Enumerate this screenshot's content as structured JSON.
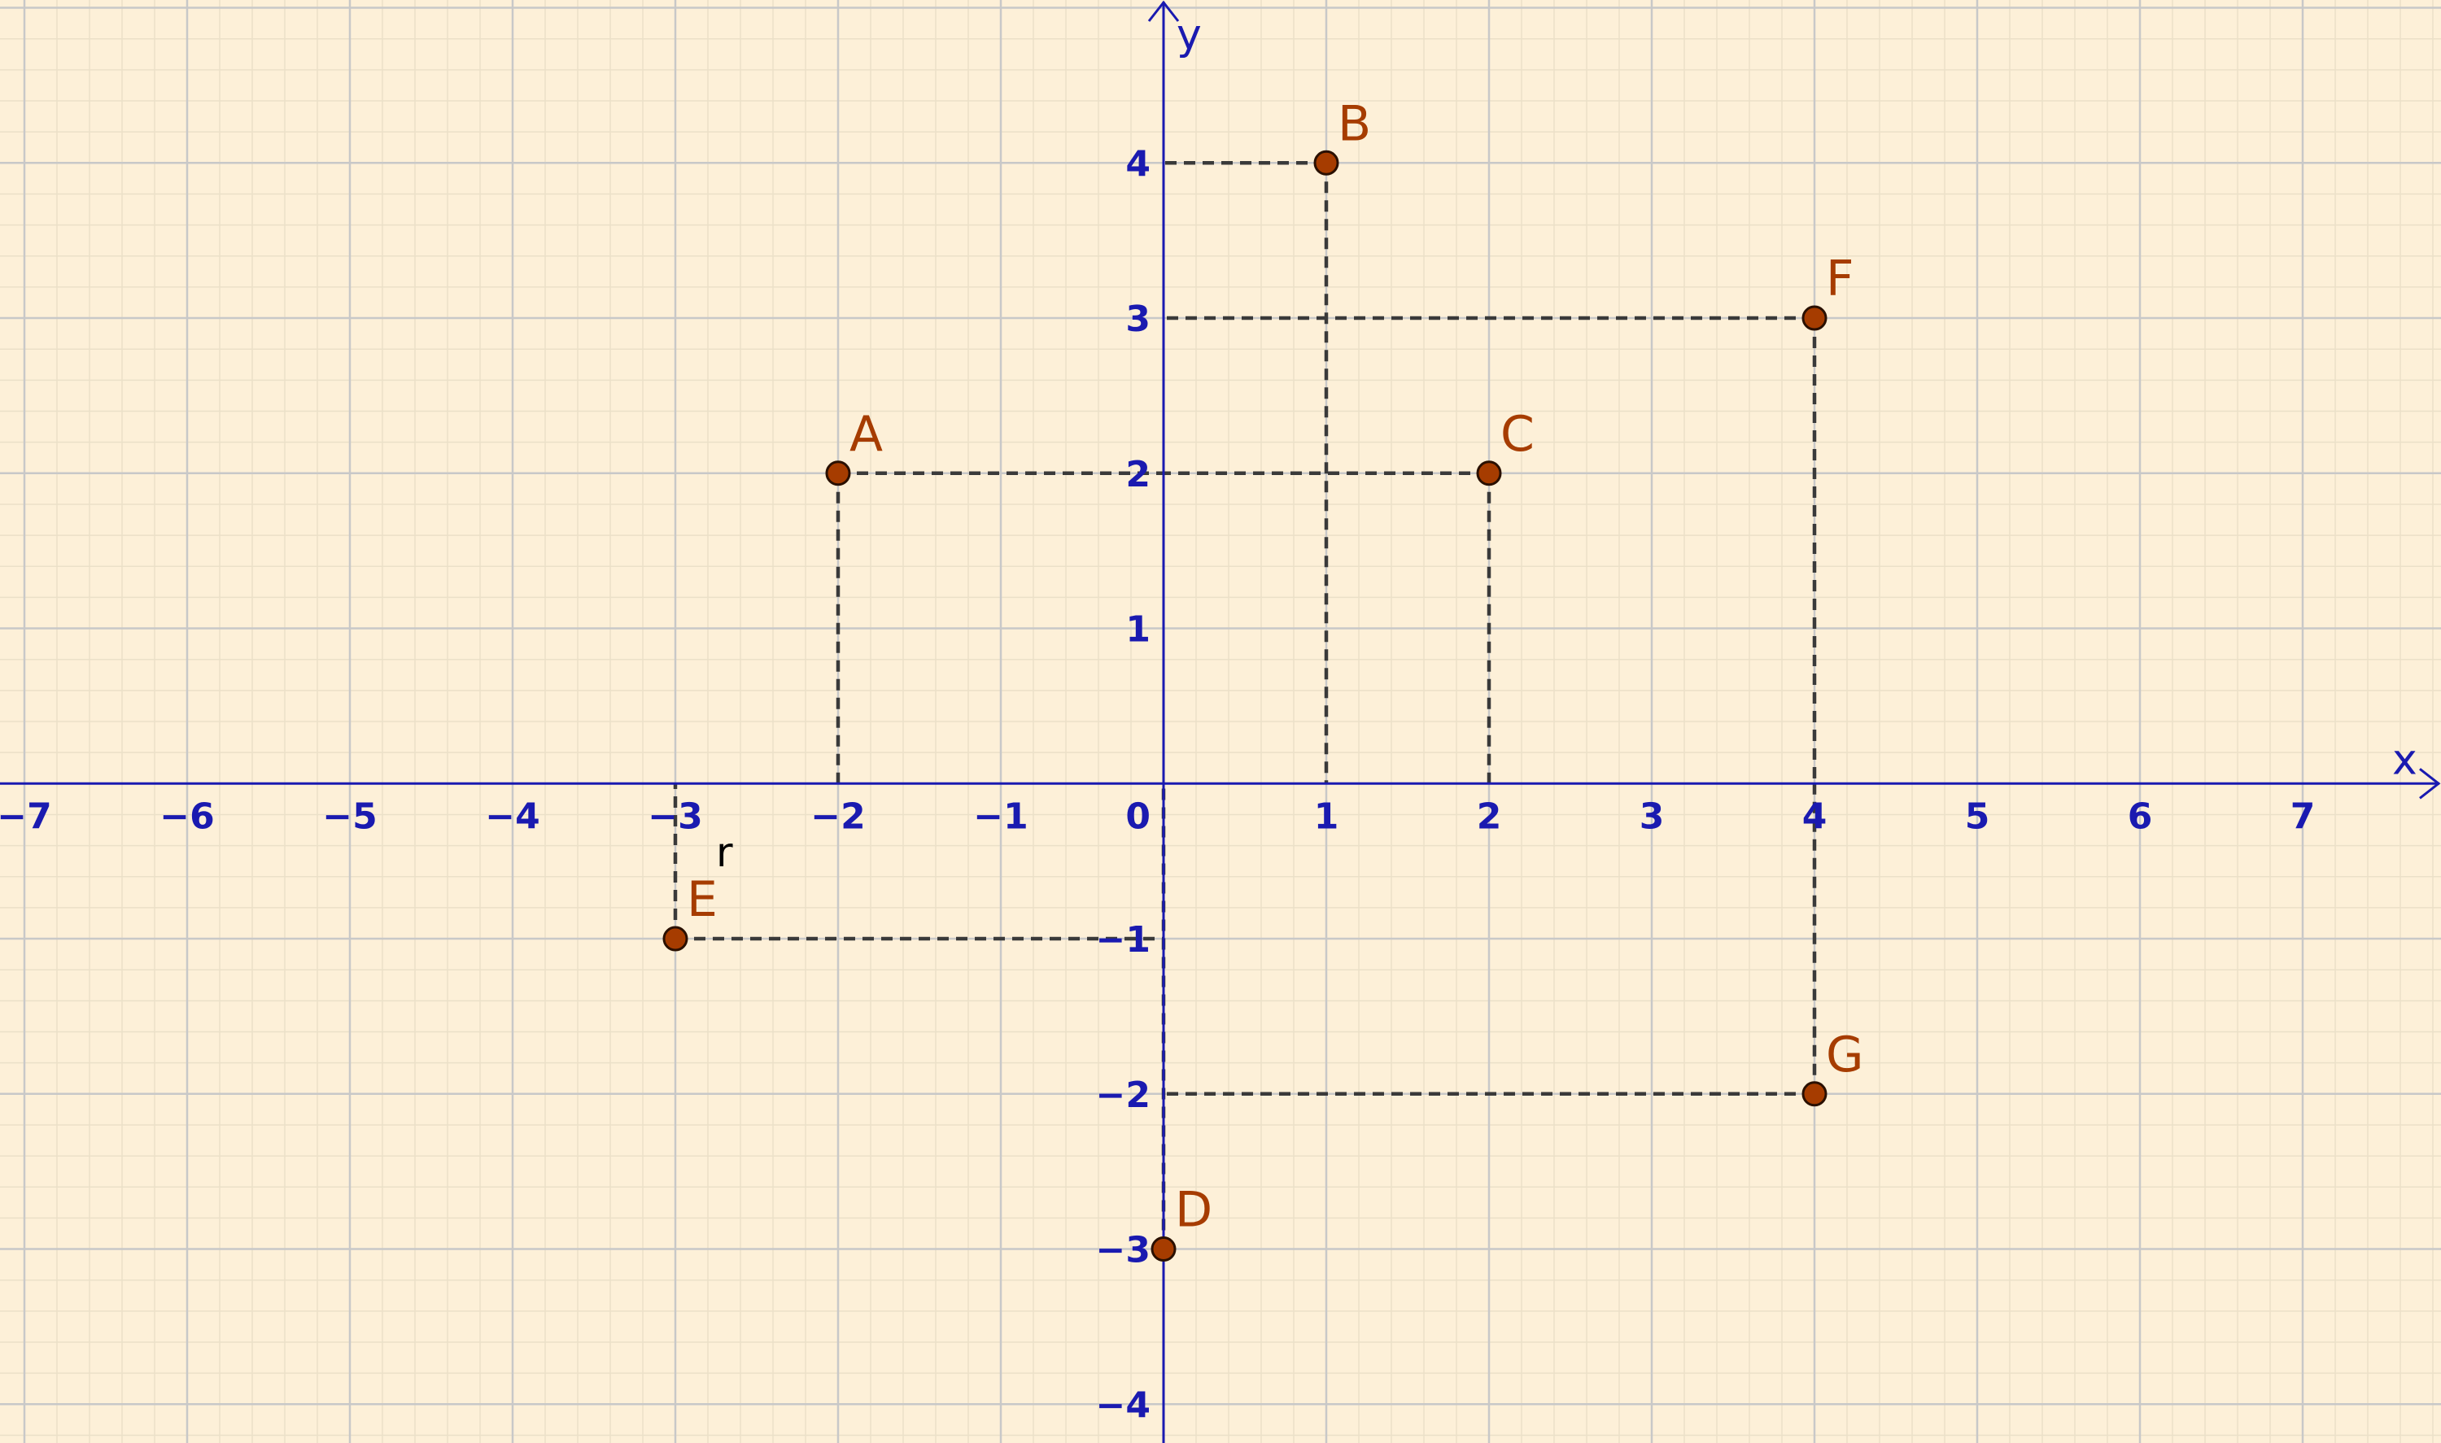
{
  "graph": {
    "x_axis_label": "x",
    "y_axis_label": "y",
    "x_range": [
      -7.15,
      7.85
    ],
    "y_range": [
      -4.25,
      5.05
    ],
    "x_ticks": [
      -7,
      -6,
      -5,
      -4,
      -3,
      -2,
      -1,
      1,
      2,
      3,
      4,
      5,
      6,
      7
    ],
    "y_ticks": [
      -4,
      -3,
      -2,
      -1,
      1,
      2,
      3,
      4
    ],
    "origin_label": "0",
    "grid": true,
    "minor_grid_per_unit": 5,
    "colors": {
      "background": "#fdf0d8",
      "major_grid": "#c8c8c8",
      "minor_grid": "#ebe0c8",
      "axis": "#1a1ab0",
      "point_fill": "#a63c00",
      "point_label": "#a63c00",
      "dashed": "#3a3a3a"
    },
    "points": [
      {
        "label": "A",
        "x": -2,
        "y": 2
      },
      {
        "label": "B",
        "x": 1,
        "y": 4
      },
      {
        "label": "C",
        "x": 2,
        "y": 2
      },
      {
        "label": "D",
        "x": 0,
        "y": -3
      },
      {
        "label": "E",
        "x": -3,
        "y": -1
      },
      {
        "label": "F",
        "x": 4,
        "y": 3
      },
      {
        "label": "G",
        "x": 4,
        "y": -2
      }
    ],
    "extra_text": [
      {
        "text": "r",
        "x": -2.75,
        "y": -0.45
      }
    ]
  }
}
